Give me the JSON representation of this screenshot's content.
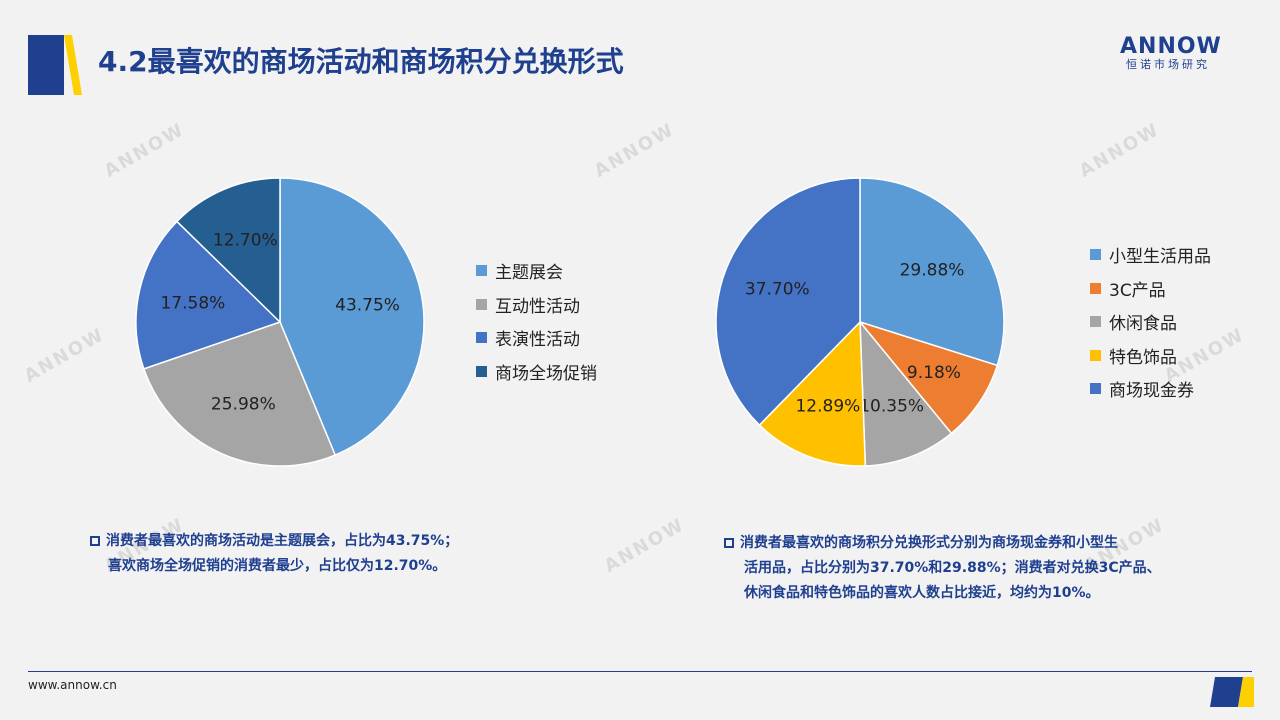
{
  "header": {
    "title": "4.2最喜欢的商场活动和商场积分兑换形式",
    "logo_text": "ANNOW",
    "logo_sub": "恒诺市场研究"
  },
  "colors": {
    "brand_blue": "#1f3f8f",
    "brand_yellow": "#ffd000"
  },
  "chart_data": [
    {
      "type": "pie",
      "title": "",
      "categories": [
        "主题展会",
        "互动性活动",
        "表演性活动",
        "商场全场促销"
      ],
      "values": [
        43.75,
        25.98,
        17.58,
        12.7
      ],
      "labels": [
        "43.75%",
        "25.98%",
        "17.58%",
        "12.70%"
      ],
      "colors": [
        "#5b9bd5",
        "#a5a5a5",
        "#4472c4",
        "#255e91"
      ],
      "legend": "right"
    },
    {
      "type": "pie",
      "title": "",
      "categories": [
        "小型生活用品",
        "3C产品",
        "休闲食品",
        "特色饰品",
        "商场现金券"
      ],
      "values": [
        29.88,
        9.18,
        10.35,
        12.89,
        37.7
      ],
      "labels": [
        "29.88%",
        "9.18%",
        "10.35%",
        "12.89%",
        "37.70%"
      ],
      "colors": [
        "#5b9bd5",
        "#ed7d31",
        "#a5a5a5",
        "#ffc000",
        "#4472c4"
      ],
      "legend": "right"
    }
  ],
  "notes": {
    "left": [
      "消费者最喜欢的商场活动是主题展会，占比为43.75%；",
      "喜欢商场全场促销的消费者最少，占比仅为12.70%。"
    ],
    "right": [
      "消费者最喜欢的商场积分兑换形式分别为商场现金券和小型生",
      "活用品，占比分别为37.70%和29.88%；消费者对兑换3C产品、",
      "休闲食品和特色饰品的喜欢人数占比接近，均约为10%。"
    ]
  },
  "footer": {
    "url": "www.annow.cn"
  }
}
